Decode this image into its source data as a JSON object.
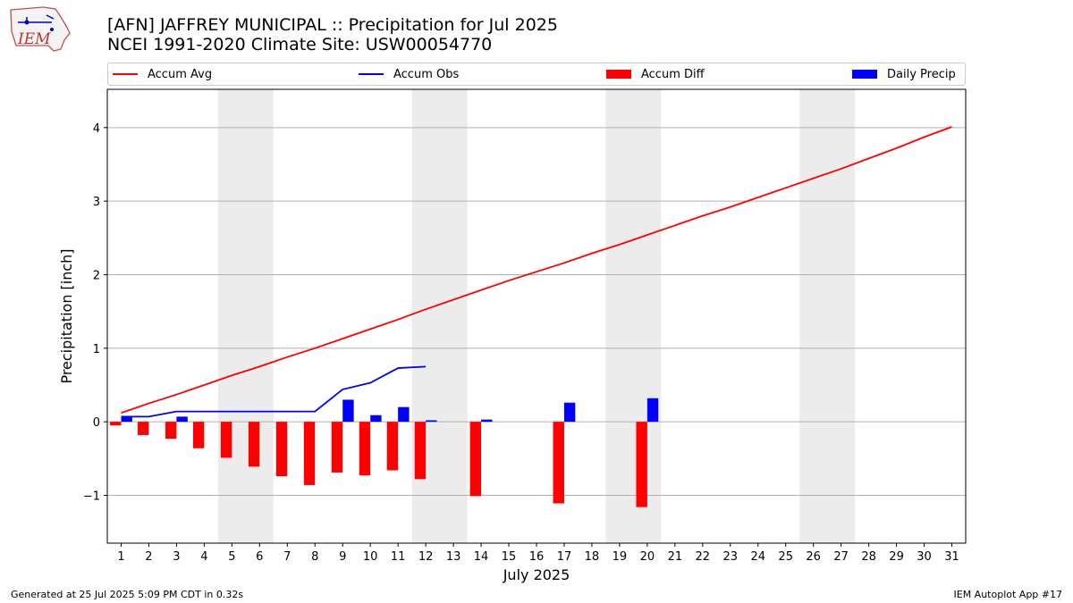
{
  "title_line1": "[AFN] JAFFREY MUNICIPAL :: Precipitation for Jul 2025",
  "title_line2": "NCEI 1991-2020 Climate Site: USW00054770",
  "logo_text": "IEM",
  "footer_left": "Generated at 25 Jul 2025 5:09 PM CDT in 0.32s",
  "footer_right": "IEM Autoplot App #17",
  "legend": [
    {
      "label": "Accum Avg",
      "color": "#ff0000",
      "kind": "line"
    },
    {
      "label": "Accum Obs",
      "color": "#0000ff",
      "kind": "line"
    },
    {
      "label": "Accum Diff",
      "color": "#ff0000",
      "kind": "bar"
    },
    {
      "label": "Daily Precip",
      "color": "#0000ff",
      "kind": "bar"
    }
  ],
  "chart_data": {
    "type": "bar",
    "xlabel": "July 2025",
    "ylabel": "Precipitation [inch]",
    "x": [
      1,
      2,
      3,
      4,
      5,
      6,
      7,
      8,
      9,
      10,
      11,
      12,
      13,
      14,
      15,
      16,
      17,
      18,
      19,
      20,
      21,
      22,
      23,
      24,
      25,
      26,
      27,
      28,
      29,
      30,
      31
    ],
    "xlim": [
      0.5,
      31.5
    ],
    "ylim": [
      -1.65,
      4.52
    ],
    "yticks": [
      -1,
      0,
      1,
      2,
      3,
      4
    ],
    "ytick_labels": [
      "−1",
      "0",
      "1",
      "2",
      "3",
      "4"
    ],
    "grid": "y",
    "weekend_shading": [
      [
        4.5,
        6.5
      ],
      [
        11.5,
        13.5
      ],
      [
        18.5,
        20.5
      ],
      [
        25.5,
        27.5
      ]
    ],
    "series": [
      {
        "name": "Accum Avg",
        "type": "line",
        "color": "#ff0000",
        "x": [
          1,
          2,
          3,
          4,
          5,
          6,
          7,
          8,
          9,
          10,
          11,
          12,
          13,
          14,
          15,
          16,
          17,
          18,
          19,
          20,
          21,
          22,
          23,
          24,
          25,
          26,
          27,
          28,
          29,
          30,
          31
        ],
        "values": [
          0.12,
          0.25,
          0.37,
          0.5,
          0.63,
          0.75,
          0.88,
          1.0,
          1.13,
          1.26,
          1.39,
          1.53,
          1.66,
          1.79,
          1.92,
          2.04,
          2.16,
          2.29,
          2.41,
          2.54,
          2.67,
          2.8,
          2.92,
          3.05,
          3.18,
          3.31,
          3.44,
          3.58,
          3.72,
          3.87,
          4.01
        ]
      },
      {
        "name": "Accum Obs",
        "type": "line",
        "color": "#0000ff",
        "x": [
          1,
          2,
          3,
          4,
          5,
          6,
          7,
          8,
          9,
          10,
          11,
          12
        ],
        "values": [
          0.07,
          0.07,
          0.14,
          0.14,
          0.14,
          0.14,
          0.14,
          0.14,
          0.44,
          0.53,
          0.73,
          0.75
        ]
      },
      {
        "name": "Accum Diff",
        "type": "bar",
        "color": "#ff0000",
        "offset": -0.2,
        "x": [
          1,
          2,
          3,
          4,
          5,
          6,
          7,
          8,
          9,
          10,
          11,
          12,
          14,
          17,
          20
        ],
        "values": [
          -0.05,
          -0.18,
          -0.23,
          -0.36,
          -0.49,
          -0.61,
          -0.74,
          -0.86,
          -0.69,
          -0.73,
          -0.66,
          -0.78,
          -1.01,
          -1.11,
          -1.16
        ]
      },
      {
        "name": "Daily Precip",
        "type": "bar",
        "color": "#0000ff",
        "offset": 0.2,
        "x": [
          1,
          3,
          9,
          10,
          11,
          12,
          14,
          17,
          20
        ],
        "values": [
          0.07,
          0.07,
          0.3,
          0.09,
          0.2,
          0.02,
          0.03,
          0.26,
          0.32
        ]
      }
    ]
  }
}
